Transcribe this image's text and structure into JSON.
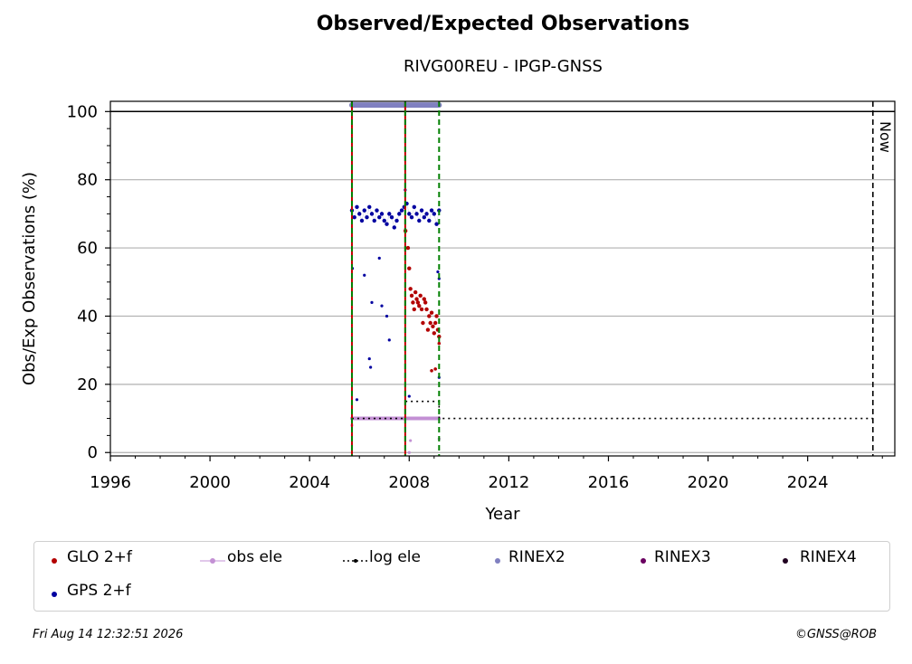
{
  "chart_data": {
    "type": "scatter",
    "title": "Observed/Expected Observations",
    "subtitle": "RIVG00REU - IPGP-GNSS",
    "xlabel": "Year",
    "ylabel": "Obs/Exp Observations (%)",
    "xlim": [
      1996,
      2027.5
    ],
    "ylim": [
      -1,
      103
    ],
    "x_ticks": [
      1996,
      2000,
      2004,
      2008,
      2012,
      2016,
      2020,
      2024
    ],
    "y_ticks": [
      0,
      20,
      40,
      60,
      80,
      100
    ],
    "grid": "horizontal",
    "reference_line_y": 100,
    "now_marker": {
      "x": 2026.62,
      "label": "Now"
    },
    "vertical_lines": [
      {
        "x": 2005.7,
        "style": "red-green dashed"
      },
      {
        "x": 2007.84,
        "style": "red-green dashed"
      },
      {
        "x": 2009.2,
        "style": "green dashed"
      }
    ],
    "series": [
      {
        "name": "GLO 2+f",
        "color": "#b30000",
        "x": [
          2007.85,
          2007.95,
          2008.0,
          2008.05,
          2008.1,
          2008.15,
          2008.2,
          2008.25,
          2008.3,
          2008.35,
          2008.4,
          2008.45,
          2008.5,
          2008.55,
          2008.6,
          2008.65,
          2008.7,
          2008.75,
          2008.8,
          2008.85,
          2008.9,
          2008.95,
          2009.0,
          2009.05,
          2009.1,
          2009.15,
          2009.2
        ],
        "y": [
          65,
          60,
          54,
          48,
          46,
          44,
          42,
          47,
          45,
          44,
          43,
          46,
          42,
          38,
          45,
          44,
          42,
          36,
          40,
          38,
          41,
          37,
          35,
          38,
          40,
          36,
          34
        ]
      },
      {
        "name": "GPS 2+f",
        "color": "#0000a0",
        "x": [
          2005.7,
          2005.8,
          2005.9,
          2006.0,
          2006.1,
          2006.2,
          2006.3,
          2006.4,
          2006.5,
          2006.6,
          2006.7,
          2006.8,
          2006.9,
          2007.0,
          2007.1,
          2007.2,
          2007.3,
          2007.4,
          2007.5,
          2007.6,
          2007.7,
          2007.8,
          2007.9,
          2008.0,
          2008.1,
          2008.2,
          2008.3,
          2008.4,
          2008.5,
          2008.6,
          2008.7,
          2008.8,
          2008.9,
          2009.0,
          2009.1,
          2009.2
        ],
        "y": [
          71,
          69,
          72,
          70,
          68,
          71,
          69,
          72,
          70,
          68,
          71,
          69,
          70,
          68,
          67,
          70,
          69,
          66,
          68,
          70,
          71,
          72,
          73,
          70,
          69,
          72,
          70,
          68,
          71,
          69,
          70,
          68,
          71,
          70,
          67,
          71
        ]
      },
      {
        "name": "obs ele",
        "color": "#c390d4",
        "x": [
          2005.7,
          2006.5,
          2007.3,
          2007.84,
          2008.5,
          2009.2
        ],
        "y": [
          10,
          10,
          10,
          10,
          10,
          10
        ]
      },
      {
        "name": "log ele",
        "color": "#000000",
        "x": [
          2005.7,
          2007.84,
          2007.84,
          2009.2,
          2009.2,
          2026.62
        ],
        "y": [
          10,
          10,
          15,
          15,
          10,
          10
        ]
      },
      {
        "name": "RINEX2",
        "color": "#8080c0",
        "x": [
          2005.7,
          2009.2
        ],
        "y": [
          101.9,
          101.9
        ]
      },
      {
        "name": "RINEX3",
        "color": "#6a0060",
        "x": [],
        "y": []
      },
      {
        "name": "RINEX4",
        "color": "#200020",
        "x": [],
        "y": []
      }
    ],
    "legend_placement": "bottom"
  },
  "footer": {
    "timestamp": "Fri Aug 14 12:32:51 2026",
    "credit": "©GNSS@ROB"
  }
}
